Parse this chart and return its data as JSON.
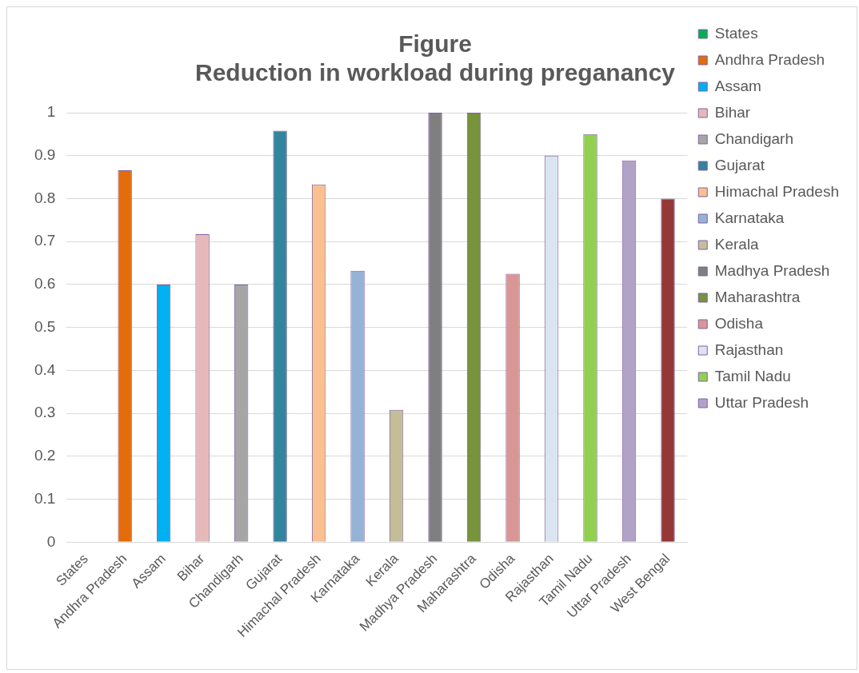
{
  "chart_data": {
    "type": "bar",
    "title": "Figure",
    "subtitle": "Reduction in workload during preganancy",
    "categories": [
      "States",
      "Andhra Pradesh",
      "Assam",
      "Bihar",
      "Chandigarh",
      "Gujarat",
      "Himachal Pradesh",
      "Karnataka",
      "Kerala",
      "Madhya Pradesh",
      "Maharashtra",
      "Odisha",
      "Rajasthan",
      "Tamil Nadu",
      "Uttar Pradesh",
      "West Bengal"
    ],
    "series": [
      {
        "name": "States",
        "color": "#00b050",
        "values": [
          0,
          null,
          null,
          null,
          null,
          null,
          null,
          null,
          null,
          null,
          null,
          null,
          null,
          null,
          null,
          null
        ]
      },
      {
        "name": "Andhra Pradesh",
        "color": "#e46c0a",
        "values": [
          null,
          0.866,
          null,
          null,
          null,
          null,
          null,
          null,
          null,
          null,
          null,
          null,
          null,
          null,
          null,
          null
        ]
      },
      {
        "name": "Assam",
        "color": "#00b0f0",
        "values": [
          null,
          null,
          0.6,
          null,
          null,
          null,
          null,
          null,
          null,
          null,
          null,
          null,
          null,
          null,
          null,
          null
        ]
      },
      {
        "name": "Bihar",
        "color": "#e6b9b8",
        "values": [
          null,
          null,
          null,
          0.717,
          null,
          null,
          null,
          null,
          null,
          null,
          null,
          null,
          null,
          null,
          null,
          null
        ]
      },
      {
        "name": "Chandigarh",
        "color": "#a6a6a6",
        "values": [
          null,
          null,
          null,
          null,
          0.6,
          null,
          null,
          null,
          null,
          null,
          null,
          null,
          null,
          null,
          null,
          null
        ]
      },
      {
        "name": "Gujarat",
        "color": "#31859c",
        "values": [
          null,
          null,
          null,
          null,
          null,
          0.958,
          null,
          null,
          null,
          null,
          null,
          null,
          null,
          null,
          null,
          null
        ]
      },
      {
        "name": "Himachal Pradesh",
        "color": "#fac090",
        "values": [
          null,
          null,
          null,
          null,
          null,
          null,
          0.833,
          null,
          null,
          null,
          null,
          null,
          null,
          null,
          null,
          null
        ]
      },
      {
        "name": "Karnataka",
        "color": "#95b3d7",
        "values": [
          null,
          null,
          null,
          null,
          null,
          null,
          null,
          0.632,
          null,
          null,
          null,
          null,
          null,
          null,
          null,
          null
        ]
      },
      {
        "name": "Kerala",
        "color": "#c4bd97",
        "values": [
          null,
          null,
          null,
          null,
          null,
          null,
          null,
          null,
          0.308,
          null,
          null,
          null,
          null,
          null,
          null,
          null
        ]
      },
      {
        "name": "Madhya Pradesh",
        "color": "#7f7f7f",
        "values": [
          null,
          null,
          null,
          null,
          null,
          null,
          null,
          null,
          null,
          1,
          null,
          null,
          null,
          null,
          null,
          null
        ]
      },
      {
        "name": "Maharashtra",
        "color": "#77933c",
        "values": [
          null,
          null,
          null,
          null,
          null,
          null,
          null,
          null,
          null,
          null,
          1,
          null,
          null,
          null,
          null,
          null
        ]
      },
      {
        "name": "Odisha",
        "color": "#d99694",
        "values": [
          null,
          null,
          null,
          null,
          null,
          null,
          null,
          null,
          null,
          null,
          null,
          0.625,
          null,
          null,
          null,
          null
        ]
      },
      {
        "name": "Rajasthan",
        "color": "#dbe5f1",
        "values": [
          null,
          null,
          null,
          null,
          null,
          null,
          null,
          null,
          null,
          null,
          null,
          null,
          0.9,
          null,
          null,
          null
        ]
      },
      {
        "name": "Tamil Nadu",
        "color": "#92d050",
        "values": [
          null,
          null,
          null,
          null,
          null,
          null,
          null,
          null,
          null,
          null,
          null,
          null,
          null,
          0.95,
          null,
          null
        ]
      },
      {
        "name": "Uttar Pradesh",
        "color": "#b3a2c7",
        "values": [
          null,
          null,
          null,
          null,
          null,
          null,
          null,
          null,
          null,
          null,
          null,
          null,
          null,
          null,
          0.889,
          null
        ]
      },
      {
        "color": "#953735",
        "values": [
          null,
          null,
          null,
          null,
          null,
          null,
          null,
          null,
          null,
          null,
          null,
          null,
          null,
          null,
          null,
          0.8
        ]
      }
    ],
    "ylim": [
      0,
      1
    ],
    "yticks": [
      0,
      0.1,
      0.2,
      0.3,
      0.4,
      0.5,
      0.6,
      0.7,
      0.8,
      0.9,
      1
    ],
    "grid": "y",
    "legend": "right"
  }
}
